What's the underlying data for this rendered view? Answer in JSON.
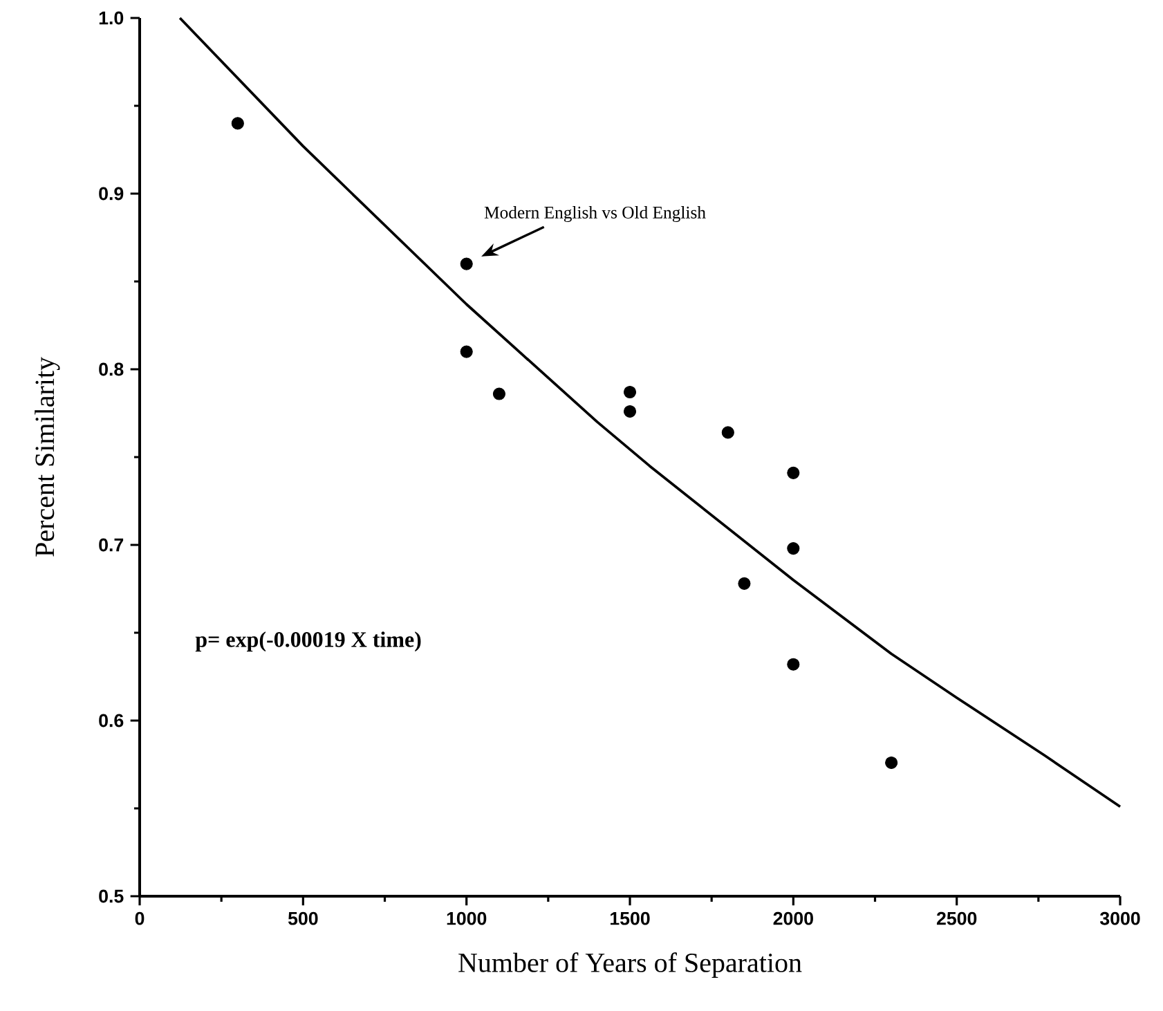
{
  "chart_data": {
    "type": "scatter",
    "xlabel": "Number of Years of Separation",
    "ylabel": "Percent Similarity",
    "xlim": [
      0,
      3000
    ],
    "xticks": [
      0,
      500,
      1000,
      1500,
      2000,
      2500,
      3000
    ],
    "ylim": [
      0.5,
      1.0
    ],
    "yticks": [
      {
        "value": 0.5,
        "label": "0.5"
      },
      {
        "value": 0.6,
        "label": "0.6"
      },
      {
        "value": 0.7,
        "label": "0.7"
      },
      {
        "value": 0.8,
        "label": "0.8"
      },
      {
        "value": 0.9,
        "label": "0.9"
      },
      {
        "value": 1.0,
        "label": "1.0"
      }
    ],
    "grid": false,
    "series": [
      {
        "type": "scatter",
        "color": "#000000",
        "marker": "circle",
        "x": [
          300,
          1000,
          1000,
          1100,
          1500,
          1500,
          1800,
          2000,
          2000,
          1850,
          2000,
          2300
        ],
        "values": [
          0.94,
          0.86,
          0.81,
          0.786,
          0.787,
          0.776,
          0.764,
          0.741,
          0.698,
          0.678,
          0.632,
          0.576
        ]
      },
      {
        "type": "line",
        "color": "#000000",
        "marker": "none",
        "line_style": "solid",
        "x": [
          123,
          500,
          1000,
          1400,
          1560,
          2000,
          2300,
          2500,
          2770,
          3000
        ],
        "values": [
          1.0,
          0.927,
          0.837,
          0.77,
          0.745,
          0.68,
          0.638,
          0.613,
          0.58,
          0.551
        ]
      }
    ],
    "annotations": [
      {
        "text": "Modern English vs Old English",
        "x": 1000,
        "y": 0.86
      },
      "**p=  exp(-0.00019 X  time)**"
    ]
  }
}
